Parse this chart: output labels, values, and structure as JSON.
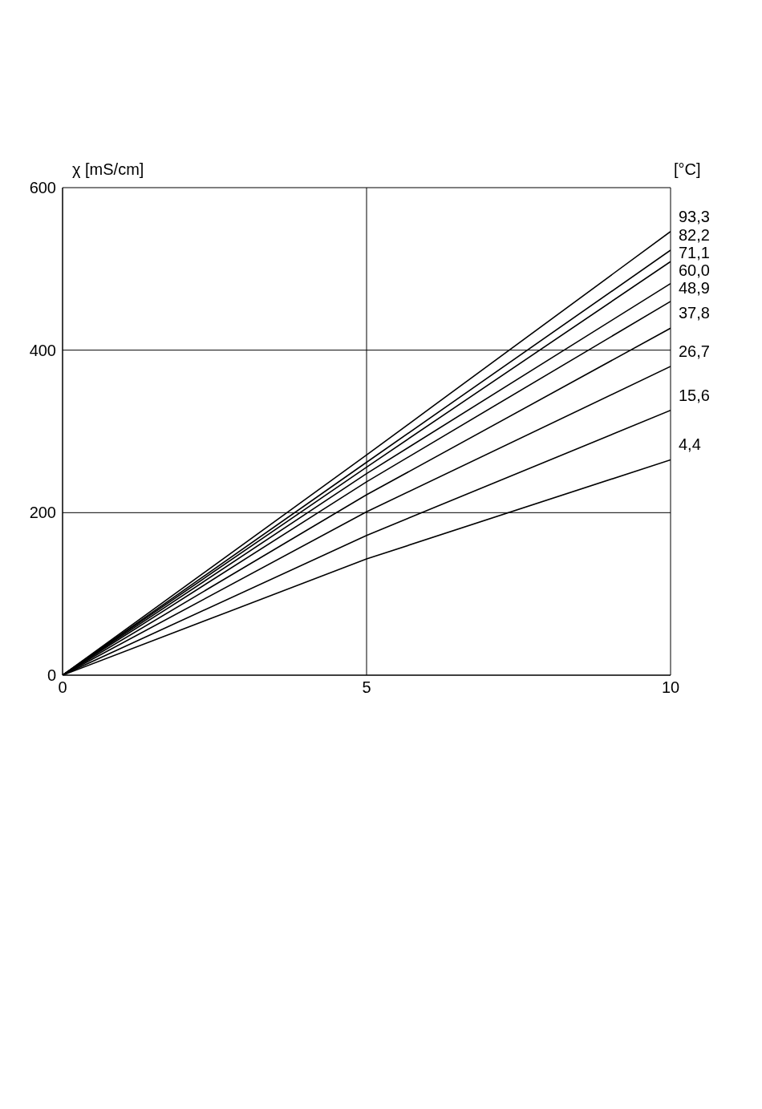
{
  "chart_data": {
    "type": "line",
    "ylabel": "χ [mS/cm]",
    "legend_title": "[°C]",
    "x": [
      0,
      5,
      10
    ],
    "series": [
      {
        "name": "93,3",
        "color": "#000000",
        "values": [
          0,
          271,
          546
        ]
      },
      {
        "name": "82,2",
        "color": "#000000",
        "values": [
          0,
          262,
          523
        ]
      },
      {
        "name": "71,1",
        "color": "#000000",
        "values": [
          0,
          256,
          509
        ]
      },
      {
        "name": "60,0",
        "color": "#000000",
        "values": [
          0,
          248,
          482
        ]
      },
      {
        "name": "48,9",
        "color": "#000000",
        "values": [
          0,
          238,
          460
        ]
      },
      {
        "name": "37,8",
        "color": "#000000",
        "values": [
          0,
          222,
          427
        ]
      },
      {
        "name": "26,7",
        "color": "#000000",
        "values": [
          0,
          201,
          380
        ]
      },
      {
        "name": "15,6",
        "color": "#000000",
        "values": [
          0,
          172,
          326
        ]
      },
      {
        "name": "4,4",
        "color": "#000000",
        "values": [
          0,
          143,
          265
        ]
      }
    ],
    "xlim": [
      0,
      10
    ],
    "xticks": [
      0,
      5,
      10
    ],
    "ylim": [
      0,
      600
    ],
    "yticks": [
      0,
      200,
      400,
      600
    ],
    "grid": true,
    "marker": "none",
    "line_style": "solid"
  }
}
